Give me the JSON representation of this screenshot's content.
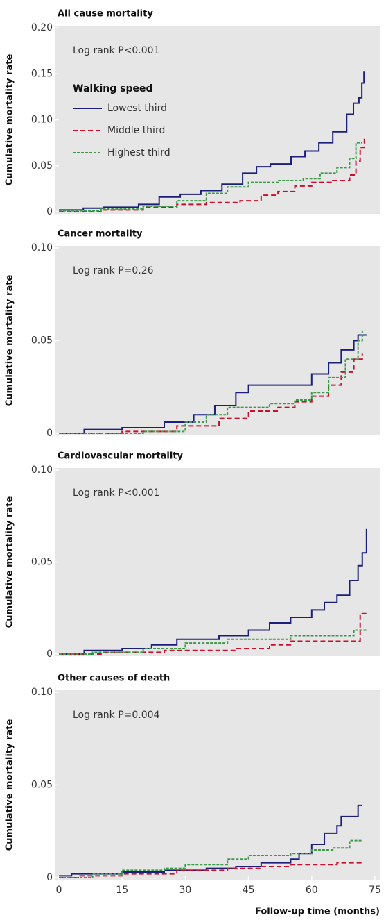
{
  "chart_data": [
    {
      "type": "step",
      "title": "All cause mortality",
      "ylabel": "Cumulative mortality rate",
      "annotation": "Log rank P<0.001",
      "legend_title": "Walking speed",
      "legend": "top-left",
      "xlim": [
        0,
        75
      ],
      "ylim": [
        0,
        0.2
      ],
      "yticks": [
        0,
        0.05,
        {
          "value": 0.1,
          "label": "0.10"
        },
        0.15,
        {
          "value": 0.2,
          "label": "0.20"
        }
      ],
      "series": [
        {
          "name": "Lowest third",
          "color": "#1c1f7a",
          "dash": "none",
          "x": [
            0,
            5.8,
            10.7,
            18.9,
            23.8,
            28.8,
            33.7,
            38.7,
            43.6,
            46.9,
            50.2,
            55.1,
            58.4,
            61.7,
            65,
            68.3,
            69.9,
            71.2,
            71.9,
            72.4
          ],
          "values": [
            0.002,
            0.004,
            0.005,
            0.008,
            0.016,
            0.019,
            0.023,
            0.03,
            0.042,
            0.049,
            0.052,
            0.06,
            0.066,
            0.075,
            0.087,
            0.106,
            0.118,
            0.124,
            0.14,
            0.153
          ]
        },
        {
          "name": "Middle third",
          "color": "#c8102e",
          "dash": "7 4",
          "x": [
            0,
            10,
            20,
            28,
            35,
            43,
            48,
            52,
            56,
            60,
            65,
            69,
            70.5,
            71.5,
            72.5
          ],
          "values": [
            0,
            0.002,
            0.005,
            0.008,
            0.01,
            0.012,
            0.018,
            0.022,
            0.028,
            0.032,
            0.034,
            0.04,
            0.055,
            0.07,
            0.082
          ]
        },
        {
          "name": "Highest third",
          "color": "#3a9a4a",
          "dash": "4 2",
          "x": [
            0,
            10,
            20,
            28,
            35,
            40,
            45,
            52,
            58,
            62,
            66,
            69,
            70.5,
            72
          ],
          "values": [
            0.001,
            0.003,
            0.006,
            0.012,
            0.02,
            0.027,
            0.032,
            0.034,
            0.036,
            0.042,
            0.048,
            0.058,
            0.075,
            0.075
          ]
        }
      ]
    },
    {
      "type": "step",
      "title": "Cancer mortality",
      "ylabel": "Cumulative mortality rate",
      "annotation": "Log rank P=0.26",
      "xlim": [
        0,
        75
      ],
      "ylim": [
        0,
        0.1
      ],
      "yticks": [
        0,
        0.05,
        {
          "value": 0.1,
          "label": "0.10"
        }
      ],
      "series": [
        {
          "color": "#1c1f7a",
          "dash": "none",
          "x": [
            0,
            6,
            15,
            25,
            32,
            37,
            42,
            45,
            58,
            60,
            64,
            67,
            70,
            71,
            73
          ],
          "values": [
            0,
            0.002,
            0.003,
            0.006,
            0.01,
            0.015,
            0.022,
            0.026,
            0.026,
            0.032,
            0.038,
            0.045,
            0.05,
            0.053,
            0.053
          ]
        },
        {
          "color": "#c8102e",
          "dash": "7 4",
          "x": [
            0,
            15,
            28,
            38,
            45,
            52,
            56,
            60,
            64,
            67,
            70,
            72
          ],
          "values": [
            0,
            0.001,
            0.004,
            0.008,
            0.012,
            0.014,
            0.017,
            0.02,
            0.026,
            0.033,
            0.04,
            0.043
          ]
        },
        {
          "color": "#3a9a4a",
          "dash": "4 2",
          "x": [
            0,
            20,
            30,
            35,
            40,
            50,
            56,
            60,
            64,
            68,
            71,
            72
          ],
          "values": [
            0,
            0.001,
            0.006,
            0.01,
            0.014,
            0.016,
            0.018,
            0.022,
            0.03,
            0.04,
            0.05,
            0.056
          ]
        }
      ]
    },
    {
      "type": "step",
      "title": "Cardiovascular mortality",
      "ylabel": "Cumulative mortality rate",
      "annotation": "Log rank P<0.001",
      "xlim": [
        0,
        75
      ],
      "ylim": [
        0,
        0.1
      ],
      "yticks": [
        0,
        0.05,
        {
          "value": 0.1,
          "label": "0.10"
        }
      ],
      "series": [
        {
          "color": "#1c1f7a",
          "dash": "none",
          "x": [
            0,
            6,
            15,
            22,
            28,
            38,
            45,
            50,
            55,
            60,
            63,
            66,
            69,
            71,
            72,
            73
          ],
          "values": [
            0,
            0.002,
            0.003,
            0.005,
            0.008,
            0.01,
            0.013,
            0.017,
            0.02,
            0.024,
            0.028,
            0.032,
            0.04,
            0.048,
            0.055,
            0.068
          ]
        },
        {
          "color": "#c8102e",
          "dash": "7 4",
          "x": [
            0,
            10,
            25,
            42,
            50,
            55,
            70,
            71.5,
            73
          ],
          "values": [
            0,
            0.001,
            0.002,
            0.003,
            0.005,
            0.007,
            0.007,
            0.022,
            0.022
          ]
        },
        {
          "color": "#3a9a4a",
          "dash": "4 2",
          "x": [
            0,
            8,
            20,
            30,
            40,
            55,
            68,
            70,
            73
          ],
          "values": [
            0,
            0.001,
            0.003,
            0.006,
            0.008,
            0.01,
            0.01,
            0.013,
            0.013
          ]
        }
      ]
    },
    {
      "type": "step",
      "title": "Other causes of death",
      "ylabel": "Cumulative mortality rate",
      "annotation": "Log rank P=0.004",
      "xlabel": "Follow-up time (months)",
      "xlim": [
        0,
        75
      ],
      "ylim": [
        0,
        0.1
      ],
      "xticks": [
        0,
        15,
        30,
        45,
        60,
        75
      ],
      "yticks": [
        0,
        0.05,
        {
          "value": 0.1,
          "label": "0.10"
        }
      ],
      "series": [
        {
          "color": "#1c1f7a",
          "dash": "none",
          "x": [
            0,
            3,
            15,
            25,
            35,
            42,
            48,
            55,
            57,
            60,
            63,
            66,
            67,
            70,
            71,
            72
          ],
          "values": [
            0.001,
            0.002,
            0.003,
            0.004,
            0.005,
            0.006,
            0.008,
            0.01,
            0.013,
            0.018,
            0.024,
            0.028,
            0.033,
            0.033,
            0.039,
            0.039
          ]
        },
        {
          "color": "#c8102e",
          "dash": "7 4",
          "x": [
            0,
            5,
            15,
            28,
            40,
            48,
            55,
            66,
            72
          ],
          "values": [
            0,
            0.001,
            0.002,
            0.004,
            0.005,
            0.006,
            0.007,
            0.008,
            0.008
          ]
        },
        {
          "color": "#3a9a4a",
          "dash": "4 2",
          "x": [
            0,
            8,
            15,
            25,
            30,
            40,
            45,
            55,
            60,
            65,
            69,
            72
          ],
          "values": [
            0,
            0.002,
            0.004,
            0.005,
            0.007,
            0.01,
            0.012,
            0.013,
            0.015,
            0.016,
            0.02,
            0.02
          ]
        }
      ]
    }
  ]
}
